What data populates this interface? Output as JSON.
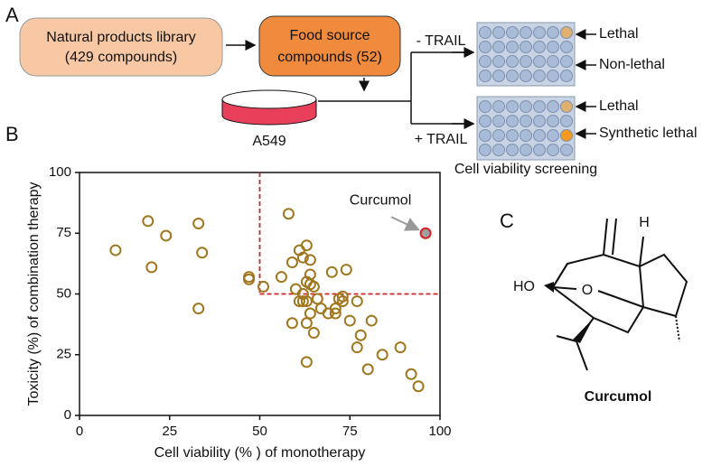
{
  "panels": {
    "a": "A",
    "b": "B",
    "c": "C"
  },
  "workflow": {
    "library": [
      "Natural products library",
      "(429 compounds)"
    ],
    "food": [
      "Food source",
      "compounds (52)"
    ],
    "cell_line": "A549",
    "minus": "- TRAIL",
    "plus": "+ TRAIL",
    "top_labels": [
      "Lethal",
      "Non-lethal"
    ],
    "bottom_labels": [
      "Lethal",
      "Synthetic lethal"
    ],
    "caption": "Cell viability screening"
  },
  "structure": {
    "ho": "HO",
    "o": "O",
    "h": "H",
    "name": "Curcumol"
  },
  "chart_data": {
    "type": "scatter",
    "xlabel": "Cell viability (% ) of monotherapy",
    "ylabel": "Toxicity (%) of combination therapy",
    "xlim": [
      0,
      100
    ],
    "xticks": [
      0,
      25,
      50,
      75,
      100
    ],
    "ylim": [
      0,
      100
    ],
    "yticks": [
      0,
      25,
      50,
      75,
      100
    ],
    "thresholds": {
      "x": 50,
      "y": 50
    },
    "series": [
      {
        "color": "#a0761e",
        "x": [
          10,
          19,
          20,
          24,
          33,
          34,
          33,
          47,
          47,
          51,
          56,
          58,
          59,
          61,
          63,
          62,
          60,
          61,
          59,
          62,
          63,
          64,
          64,
          65,
          63,
          64,
          63,
          65,
          62,
          63,
          67,
          69,
          70,
          71,
          71,
          72,
          73,
          74,
          73,
          75,
          77,
          77,
          78,
          81,
          80,
          84,
          89,
          92,
          94,
          64,
          66
        ],
        "values": [
          68,
          80,
          61,
          74,
          79,
          67,
          44,
          57,
          56,
          53,
          57,
          83,
          63,
          68,
          70,
          65,
          52,
          47,
          38,
          50,
          55,
          58,
          54,
          53,
          47,
          42,
          38,
          34,
          47,
          22,
          44,
          42,
          59,
          44,
          42,
          48,
          49,
          60,
          47,
          39,
          47,
          28,
          33,
          39,
          19,
          25,
          28,
          17,
          12,
          64,
          48
        ]
      }
    ],
    "highlight": {
      "x": 96,
      "y": 75,
      "label": "Curcumol",
      "color": "#d42027"
    }
  }
}
